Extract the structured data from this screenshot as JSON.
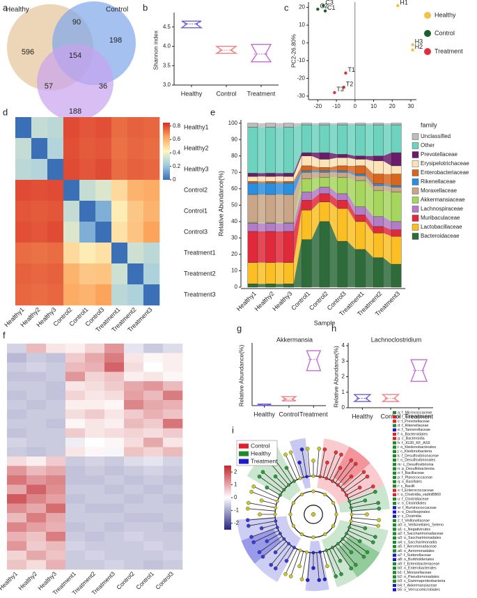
{
  "chart_data": [
    {
      "type": "venn",
      "label": "a",
      "sets": [
        {
          "name": "Healthy",
          "color": "#e6c39a"
        },
        {
          "name": "Control",
          "color": "#7fa7ea"
        },
        {
          "name": "Treatment",
          "color": "#c8a2ee"
        }
      ],
      "values": [
        596,
        90,
        198,
        57,
        154,
        36,
        188
      ]
    },
    {
      "type": "violin",
      "label": "b",
      "ylabel": "Shannon index",
      "categories": [
        "Healthy",
        "Control",
        "Treatment"
      ],
      "values": [
        4.58,
        3.9,
        3.8
      ],
      "mins": [
        4.48,
        3.82,
        3.6
      ],
      "maxs": [
        4.65,
        4.0,
        4.05
      ],
      "colors": [
        "#6a5cd8",
        "#f07f86",
        "#c46ad8"
      ],
      "ylim": [
        3,
        4.8
      ],
      "yticks": [
        {
          "value": 3,
          "label": "3.0"
        },
        3.5,
        {
          "value": 4,
          "label": "4.0"
        },
        4.5
      ]
    },
    {
      "type": "scatter",
      "label": "c",
      "ylabel": "PC2-26.80%",
      "series": [
        {
          "name": "Healthy",
          "color": "#f2c14a",
          "x": [
            23,
            31,
            31
          ],
          "y": [
            21,
            -4,
            -1
          ],
          "labels": [
            "H1",
            "H2",
            "H3"
          ]
        },
        {
          "name": "Control",
          "color": "#1d5e2c",
          "x": [
            -16,
            -20,
            -17
          ],
          "y": [
            18,
            19,
            21
          ],
          "labels": [
            "C1",
            "C2",
            "C3"
          ]
        },
        {
          "name": "Treatment",
          "color": "#e02f3c",
          "x": [
            -5,
            -6,
            -11
          ],
          "y": [
            -17,
            -25,
            -28
          ],
          "labels": [
            "T1",
            "T2",
            "T3"
          ]
        }
      ],
      "xlim": [
        -25,
        33
      ],
      "ylim": [
        -32,
        23
      ],
      "xticks": [
        -20,
        -10,
        0,
        10,
        20,
        30
      ],
      "yticks": [
        -30,
        -20,
        -10,
        0,
        10,
        20
      ]
    },
    {
      "type": "heatmap",
      "label": "d",
      "rows": [
        "Healthy1",
        "Healthy2",
        "Healthy3",
        "Control2",
        "Control1",
        "Control3",
        "Treatment1",
        "Treatment2",
        "Treatment3"
      ],
      "columns": [
        "Healthy1",
        "Healthy2",
        "Healthy3",
        "Control2",
        "Control1",
        "Control3",
        "Treatment1",
        "Treatment2",
        "Treatment3"
      ],
      "values": [
        [
          0,
          0.3,
          0.28,
          0.8,
          0.78,
          0.79,
          0.74,
          0.76,
          0.75
        ],
        [
          0.3,
          0,
          0.26,
          0.79,
          0.77,
          0.78,
          0.73,
          0.75,
          0.74
        ],
        [
          0.28,
          0.26,
          0,
          0.8,
          0.78,
          0.8,
          0.74,
          0.76,
          0.75
        ],
        [
          0.8,
          0.79,
          0.8,
          0,
          0.3,
          0.35,
          0.5,
          0.6,
          0.62
        ],
        [
          0.78,
          0.77,
          0.78,
          0.3,
          0,
          0.15,
          0.45,
          0.55,
          0.6
        ],
        [
          0.79,
          0.78,
          0.8,
          0.35,
          0.15,
          0,
          0.48,
          0.56,
          0.64
        ],
        [
          0.74,
          0.73,
          0.74,
          0.5,
          0.45,
          0.48,
          0,
          0.32,
          0.28
        ],
        [
          0.76,
          0.75,
          0.76,
          0.6,
          0.55,
          0.56,
          0.32,
          0,
          0.25
        ],
        [
          0.75,
          0.74,
          0.75,
          0.62,
          0.6,
          0.64,
          0.28,
          0.25,
          0
        ]
      ],
      "zlim": [
        0,
        0.85
      ],
      "zticks": [
        0,
        0.2,
        0.4,
        0.6,
        0.8
      ],
      "colormap": [
        "#3b6fb6",
        "#9ccae2",
        "#fdf6c0",
        "#fca55d",
        "#d62f27"
      ]
    },
    {
      "type": "stacked_bar",
      "label": "e",
      "ylabel": "Relative Abundance(%)",
      "xlabel": "Sample",
      "legend_title": "family",
      "categories": [
        "Healthy1",
        "Healthy2",
        "Healthy3",
        "Control1",
        "Control2",
        "Control3",
        "Treatment1",
        "Treatment2",
        "Treatment3"
      ],
      "series": [
        {
          "name": "Bacteroidaceae",
          "color": "#2e6b3a",
          "values": [
            2,
            2,
            2,
            29,
            40,
            28,
            23,
            18,
            14
          ]
        },
        {
          "name": "Lactobacillaceae",
          "color": "#fbbf24",
          "values": [
            13,
            13,
            13,
            18,
            12,
            20,
            17,
            15,
            17
          ]
        },
        {
          "name": "Muribaculaceae",
          "color": "#e0293a",
          "values": [
            19,
            19,
            19,
            6,
            5,
            5,
            4,
            4,
            4
          ]
        },
        {
          "name": "Lachnospiraceae",
          "color": "#b37cc7",
          "values": [
            5,
            5,
            5,
            5,
            4,
            4,
            5,
            6,
            5
          ]
        },
        {
          "name": "Akkermansiaceae",
          "color": "#a6d65e",
          "values": [
            0.5,
            0.5,
            0.5,
            8,
            6,
            10,
            16,
            16,
            18
          ]
        },
        {
          "name": "Moraxellaceae",
          "color": "#c9a688",
          "values": [
            17,
            17,
            17,
            4,
            3,
            3,
            3,
            3,
            3
          ]
        },
        {
          "name": "Rikenellaceae",
          "color": "#2b8fe0",
          "values": [
            7,
            7,
            7,
            1,
            1,
            1,
            1,
            1,
            1
          ]
        },
        {
          "name": "Enterobacteriaceae",
          "color": "#d9661f",
          "values": [
            1,
            1,
            1,
            3,
            2,
            3,
            5,
            6,
            7
          ]
        },
        {
          "name": "Erysipelotrichaceae",
          "color": "#fde3b6",
          "values": [
            3,
            3,
            3,
            6,
            5,
            5,
            4,
            8,
            5
          ]
        },
        {
          "name": "Prevotellaceae",
          "color": "#6a1b6a",
          "values": [
            2,
            2,
            2,
            2,
            4,
            2,
            2,
            3,
            8
          ]
        },
        {
          "name": "Other",
          "color": "#6ed3be",
          "values": [
            28,
            28,
            28,
            17,
            17,
            18,
            19,
            19,
            17
          ]
        },
        {
          "name": "Unclassified",
          "color": "#bdbdbd",
          "values": [
            2.5,
            2.5,
            2.5,
            1,
            1,
            1,
            1,
            1,
            1
          ]
        }
      ],
      "ylim": [
        0,
        102
      ],
      "yticks": [
        0,
        10,
        20,
        30,
        40,
        50,
        60,
        70,
        80,
        90,
        100
      ]
    },
    {
      "type": "heatmap",
      "label": "f",
      "columns": [
        "Healthy1",
        "Healthy2",
        "Healthy3",
        "Treatment1",
        "Treatment2",
        "Treatment3",
        "Control2",
        "Control1",
        "Control3"
      ],
      "values": [
        [
          -0.5,
          0.8,
          0.3,
          0.2,
          0.5,
          1.2,
          -0.3,
          -0.6,
          -0.4
        ],
        [
          -0.8,
          -0.6,
          -0.7,
          0.6,
          1.0,
          1.5,
          0.3,
          0.1,
          0.2
        ],
        [
          -0.6,
          -0.5,
          -0.6,
          0.8,
          0.9,
          1.8,
          0.4,
          0.0,
          0.2
        ],
        [
          -0.7,
          -0.7,
          -0.6,
          1.2,
          0.5,
          0.7,
          0.2,
          0.3,
          0.1
        ],
        [
          -0.6,
          -0.6,
          -0.7,
          0.3,
          0.4,
          0.6,
          1.0,
          1.2,
          0.8
        ],
        [
          -0.7,
          -0.6,
          -0.7,
          0.5,
          0.3,
          0.4,
          1.1,
          0.8,
          1.5
        ],
        [
          -0.6,
          -0.7,
          -0.6,
          0.2,
          0.2,
          0.1,
          1.4,
          1.0,
          0.9
        ],
        [
          -0.7,
          -0.6,
          -0.6,
          0.4,
          0.6,
          0.3,
          0.6,
          0.9,
          0.7
        ],
        [
          -0.6,
          -0.6,
          -0.7,
          0.1,
          0.3,
          0.2,
          0.8,
          0.6,
          1.6
        ],
        [
          -0.7,
          -0.6,
          -0.6,
          0.6,
          0.3,
          0.4,
          0.5,
          0.4,
          0.6
        ],
        [
          -0.5,
          -0.6,
          -0.6,
          -0.2,
          0.0,
          0.1,
          0.4,
          1.0,
          0.3
        ],
        [
          -0.6,
          -0.7,
          -0.6,
          0.3,
          0.1,
          -0.1,
          0.7,
          0.5,
          0.8
        ],
        [
          0.4,
          0.2,
          0.6,
          -0.6,
          -0.5,
          -0.6,
          -0.4,
          -0.3,
          -0.5
        ],
        [
          1.2,
          0.8,
          1.0,
          -0.7,
          -0.6,
          -0.7,
          -0.6,
          -0.5,
          -0.6
        ],
        [
          1.6,
          1.2,
          1.4,
          -0.7,
          -0.7,
          -0.6,
          -0.7,
          -0.6,
          -0.7
        ],
        [
          1.0,
          1.8,
          1.3,
          -0.6,
          -0.6,
          -0.7,
          -0.6,
          -0.7,
          -0.6
        ],
        [
          1.9,
          1.4,
          1.1,
          -0.7,
          -0.6,
          -0.6,
          -0.7,
          -0.6,
          -0.7
        ],
        [
          1.3,
          1.0,
          1.7,
          -0.6,
          -0.7,
          -0.7,
          -0.6,
          -0.6,
          -0.6
        ],
        [
          0.8,
          1.5,
          1.0,
          -0.6,
          -0.6,
          -0.6,
          -0.7,
          -0.7,
          -0.6
        ],
        [
          1.4,
          1.1,
          0.9,
          -0.7,
          -0.6,
          -0.7,
          -0.6,
          -0.6,
          -0.7
        ],
        [
          0.9,
          0.7,
          1.5,
          -0.6,
          -0.7,
          -0.6,
          -0.5,
          -0.6,
          -0.6
        ],
        [
          1.2,
          0.6,
          0.8,
          -0.5,
          -0.6,
          -0.6,
          -0.6,
          -0.5,
          -0.6
        ],
        [
          0.5,
          1.0,
          0.7,
          -0.6,
          -0.5,
          -0.6,
          -0.6,
          -0.6,
          -0.5
        ],
        [
          0.7,
          0.4,
          0.9,
          -0.6,
          -0.6,
          -0.5,
          -0.6,
          -0.7,
          -0.6
        ]
      ],
      "zlim": [
        -2.5,
        2.5
      ],
      "zticks": [
        -2,
        -1,
        0,
        1,
        2
      ],
      "colormap": [
        "#25257f",
        "#ffffff",
        "#c1272d"
      ]
    },
    {
      "type": "violin",
      "label": "g",
      "title": "Akkermansia",
      "ylabel": "Relative Abundance(%)",
      "categories": [
        "Healthy",
        "Control",
        "Treatment"
      ],
      "values": [
        0.3,
        2.6,
        18.5
      ],
      "mins": [
        0.1,
        1.9,
        14
      ],
      "maxs": [
        0.6,
        3.6,
        22
      ],
      "colors": [
        "#6a5cd8",
        "#f07f86",
        "#c46ad8"
      ],
      "ylim": [
        0,
        24
      ]
    },
    {
      "type": "violin",
      "label": "h",
      "title": "Lachnoclostridium",
      "ylabel": "Relative Abundance(%)",
      "categories": [
        "Healthy",
        "Control",
        "Treatment"
      ],
      "values": [
        0.6,
        0.6,
        2.4
      ],
      "mins": [
        0.4,
        0.4,
        1.7
      ],
      "maxs": [
        0.85,
        0.85,
        3.1
      ],
      "colors": [
        "#6a5cd8",
        "#f07f86",
        "#c46ad8"
      ],
      "ylim": [
        0,
        4
      ],
      "yticks": [
        0,
        1,
        2,
        3,
        4
      ]
    },
    {
      "type": "cladogram",
      "label": "i",
      "groups": [
        {
          "name": "Control",
          "color": "#e0202a"
        },
        {
          "name": "Healthy",
          "color": "#1f8a2a"
        },
        {
          "name": "Treatment",
          "color": "#1a1acd"
        }
      ],
      "taxa": [
        {
          "label": "a: f_Micrococcaceae",
          "color": "#1f8a2a"
        },
        {
          "label": "b: f_Bacteroidaceae",
          "color": "#e0202a"
        },
        {
          "label": "c: f_Prevotellaceae",
          "color": "#e0202a"
        },
        {
          "label": "d: f_Rikenellaceae",
          "color": "#1f8a2a"
        },
        {
          "label": "e: f_Tannerellaceae",
          "color": "#1a1acd"
        },
        {
          "label": "f: o_Bacteroidales",
          "color": "#e0202a"
        },
        {
          "label": "g: c_Bacteroidia",
          "color": "#e0202a"
        },
        {
          "label": "h: f_JG30_KF_AS9",
          "color": "#1f8a2a"
        },
        {
          "label": "i: o_Ktedonobacterales",
          "color": "#1f8a2a"
        },
        {
          "label": "j: c_Ktedonobacteria",
          "color": "#1f8a2a"
        },
        {
          "label": "k: f_Desulfovibrionaceae",
          "color": "#1f8a2a"
        },
        {
          "label": "l: o_Desulfovibrionales",
          "color": "#1f8a2a"
        },
        {
          "label": "m: c_Desulfovibrionia",
          "color": "#1f8a2a"
        },
        {
          "label": "n: p_Desulfobacterota",
          "color": "#1f8a2a"
        },
        {
          "label": "o: f_Bacillaceae",
          "color": "#1f8a2a"
        },
        {
          "label": "p: f_Planococcaceae",
          "color": "#1f8a2a"
        },
        {
          "label": "q: o_Bacillales",
          "color": "#1f8a2a"
        },
        {
          "label": "r: c_Bacilli",
          "color": "#1f8a2a"
        },
        {
          "label": "s: f_Enterococcaceae",
          "color": "#e0202a"
        },
        {
          "label": "t: o_Clostridia_vadinBB60",
          "color": "#e0202a"
        },
        {
          "label": "u: f_Clostridiaceae",
          "color": "#1f8a2a"
        },
        {
          "label": "v: o_Clostridiales",
          "color": "#1f8a2a"
        },
        {
          "label": "w: f_Ruminococcaceae",
          "color": "#1a1acd"
        },
        {
          "label": "x: o_Oscillospirales",
          "color": "#1a1acd"
        },
        {
          "label": "y: c_Clostridia",
          "color": "#1a1acd"
        },
        {
          "label": "z: f_Veillonellaceae",
          "color": "#1f8a2a"
        },
        {
          "label": "a0: o_Veillonellales_Seleno",
          "color": "#1f8a2a"
        },
        {
          "label": "a1: c_Negativicutes",
          "color": "#1f8a2a"
        },
        {
          "label": "a2: f_Saccharimonadaceae",
          "color": "#1f8a2a"
        },
        {
          "label": "a3: o_Saccharimonadales",
          "color": "#1f8a2a"
        },
        {
          "label": "a4: c_Saccharimonadia",
          "color": "#1f8a2a"
        },
        {
          "label": "a5: f_Aeromonadaceae",
          "color": "#1f8a2a"
        },
        {
          "label": "a6: o_Aeromonadales",
          "color": "#1f8a2a"
        },
        {
          "label": "a7: f_Sutterellaceae",
          "color": "#1a1acd"
        },
        {
          "label": "a8: o_Burkholderiales",
          "color": "#1a1acd"
        },
        {
          "label": "a9: f_Enterobacteriaceae",
          "color": "#1f8a2a"
        },
        {
          "label": "b0: o_Enterobacterales",
          "color": "#1f8a2a"
        },
        {
          "label": "b1: f_Moraxellaceae",
          "color": "#1f8a2a"
        },
        {
          "label": "b2: o_Pseudomonadales",
          "color": "#1f8a2a"
        },
        {
          "label": "b3: c_Gammaproteobacteria",
          "color": "#1f8a2a"
        },
        {
          "label": "b4: f_Akkermansiaceae",
          "color": "#1a1acd"
        },
        {
          "label": "b5: o_Verrucomicrobiales",
          "color": "#1a1acd"
        }
      ]
    }
  ]
}
